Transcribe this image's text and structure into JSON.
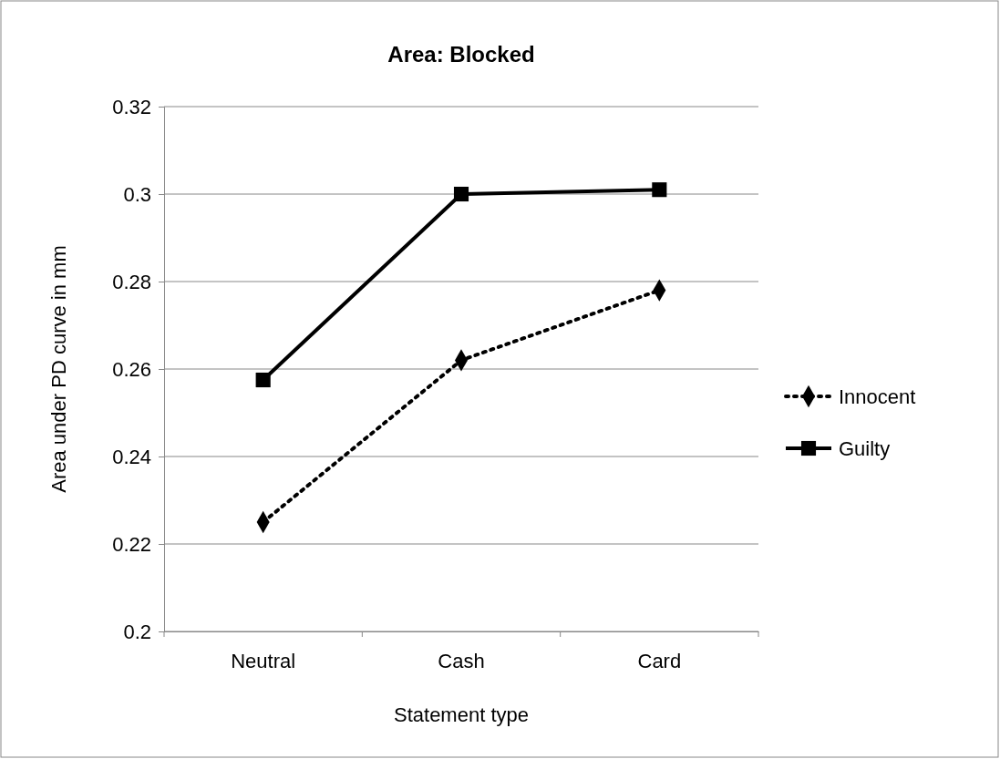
{
  "chart_data": {
    "type": "line",
    "title": "Area: Blocked",
    "xlabel": "Statement type",
    "ylabel": "Area under PD curve in mm",
    "categories": [
      "Neutral",
      "Cash",
      "Card"
    ],
    "series": [
      {
        "name": "Innocent",
        "color": "#000000",
        "values": [
          0.225,
          0.262,
          0.278
        ],
        "marker": "diamond",
        "line_style": "dotted"
      },
      {
        "name": "Guilty",
        "color": "#000000",
        "values": [
          0.2575,
          0.3,
          0.301
        ],
        "marker": "square",
        "line_style": "solid"
      }
    ],
    "ylim": [
      0.2,
      0.32
    ],
    "yticks": [
      0.2,
      0.22,
      0.24,
      0.26,
      0.28,
      0.3,
      0.32
    ],
    "grid": "y",
    "legend": "right"
  }
}
